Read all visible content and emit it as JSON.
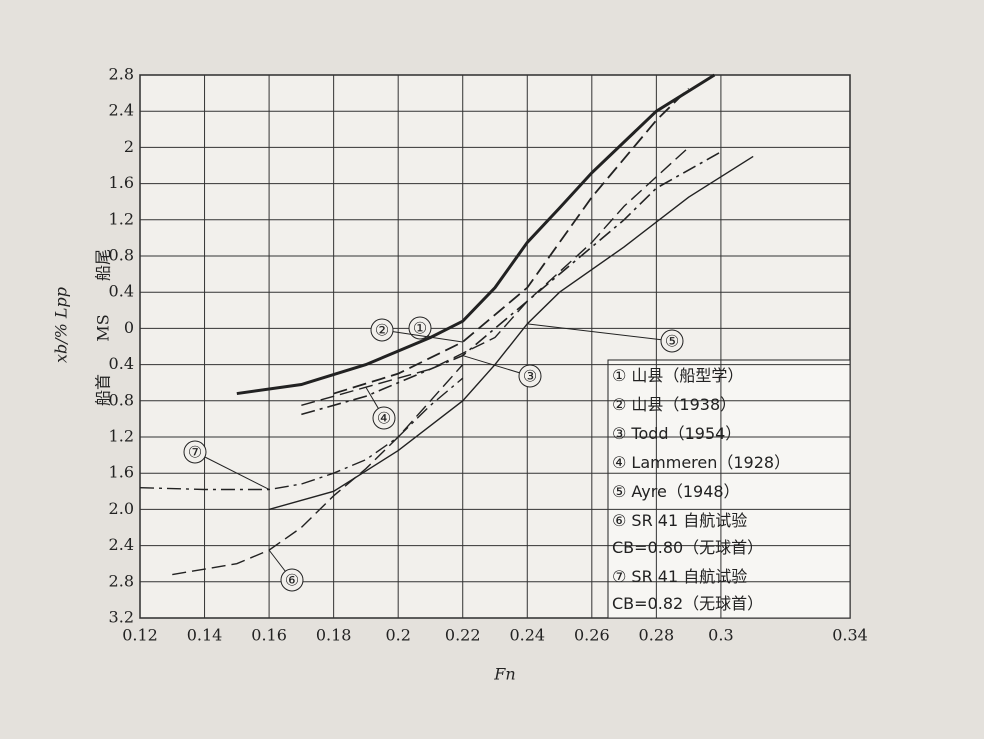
{
  "chart_data": {
    "type": "line",
    "xlabel": "Fn",
    "ylabel": "xb/% Lpp",
    "y_upper_label": "船尾",
    "y_mid_label": "MS",
    "y_lower_label": "船首",
    "xlim": [
      0.12,
      0.34
    ],
    "xticks": [
      0.12,
      0.14,
      0.16,
      0.18,
      0.2,
      0.22,
      0.24,
      0.26,
      0.28,
      0.3,
      0.34
    ],
    "ylim": [
      -3.2,
      2.8
    ],
    "yticks": [
      2.8,
      2.4,
      2,
      1.6,
      1.2,
      0.8,
      0.4,
      0,
      {
        "value": -0.4,
        "label": "0.4"
      },
      {
        "value": -0.8,
        "label": "0.8"
      },
      {
        "value": -1.2,
        "label": "1.2"
      },
      {
        "value": -1.6,
        "label": "1.6"
      },
      {
        "value": -2,
        "label": "2.0"
      },
      {
        "value": -2.4,
        "label": "2.4"
      },
      {
        "value": -2.8,
        "label": "2.8"
      },
      {
        "value": -3.2,
        "label": "3.2"
      }
    ],
    "grid": true,
    "series": [
      {
        "name": "① 山县（船型学）",
        "label": "①",
        "color": "#222",
        "style": "solid",
        "width": 3,
        "x": [
          0.15,
          0.17,
          0.19,
          0.21,
          0.22,
          0.23,
          0.24,
          0.25,
          0.26,
          0.28,
          0.298
        ],
        "values": [
          -0.72,
          -0.62,
          -0.4,
          -0.1,
          0.08,
          0.45,
          0.95,
          1.33,
          1.72,
          2.4,
          2.8
        ]
      },
      {
        "name": "② 山县（1938）",
        "label": "②",
        "color": "#222",
        "style": "dashed",
        "width": 1.8,
        "x": [
          0.18,
          0.2,
          0.22,
          0.24,
          0.26,
          0.28,
          0.29
        ],
        "values": [
          -0.72,
          -0.5,
          -0.15,
          0.45,
          1.45,
          2.3,
          2.65
        ]
      },
      {
        "name": "③ Todd（1954）",
        "label": "③",
        "color": "#222",
        "style": "dashdot",
        "width": 1.6,
        "x": [
          0.17,
          0.19,
          0.21,
          0.22,
          0.23,
          0.25,
          0.27,
          0.28,
          0.3
        ],
        "values": [
          -0.95,
          -0.75,
          -0.45,
          -0.3,
          0.0,
          0.6,
          1.2,
          1.55,
          1.95
        ]
      },
      {
        "name": "④ Lammeren（1928）",
        "label": "④",
        "color": "#222",
        "style": "dashed",
        "width": 1.4,
        "x": [
          0.17,
          0.19,
          0.21,
          0.23,
          0.24,
          0.26,
          0.27,
          0.29
        ],
        "values": [
          -0.85,
          -0.65,
          -0.45,
          -0.1,
          0.3,
          0.95,
          1.35,
          2.0
        ]
      },
      {
        "name": "⑤ Ayre（1948）",
        "label": "⑤",
        "color": "#222",
        "style": "solid",
        "width": 1.4,
        "x": [
          0.16,
          0.18,
          0.2,
          0.22,
          0.23,
          0.24,
          0.25,
          0.27,
          0.29,
          0.31
        ],
        "values": [
          -2.0,
          -1.8,
          -1.35,
          -0.8,
          -0.4,
          0.05,
          0.4,
          0.9,
          1.45,
          1.9
        ]
      },
      {
        "name": "⑥ SR 41 自航试验\nCB=0.80（无球首）",
        "label": "⑥",
        "color": "#222",
        "style": "dashed",
        "width": 1.4,
        "x": [
          0.13,
          0.15,
          0.16,
          0.17,
          0.18,
          0.19,
          0.2,
          0.21,
          0.22
        ],
        "values": [
          -2.72,
          -2.6,
          -2.45,
          -2.2,
          -1.85,
          -1.55,
          -1.2,
          -0.8,
          -0.4
        ]
      },
      {
        "name": "⑦ SR 41 自航试验\nCB=0.82（无球首）",
        "label": "⑦",
        "color": "#222",
        "style": "dashdot",
        "width": 1.4,
        "x": [
          0.12,
          0.14,
          0.16,
          0.17,
          0.18,
          0.19,
          0.2,
          0.21,
          0.22
        ],
        "values": [
          -1.76,
          -1.78,
          -1.78,
          -1.72,
          -1.6,
          -1.45,
          -1.2,
          -0.85,
          -0.55
        ]
      }
    ]
  }
}
